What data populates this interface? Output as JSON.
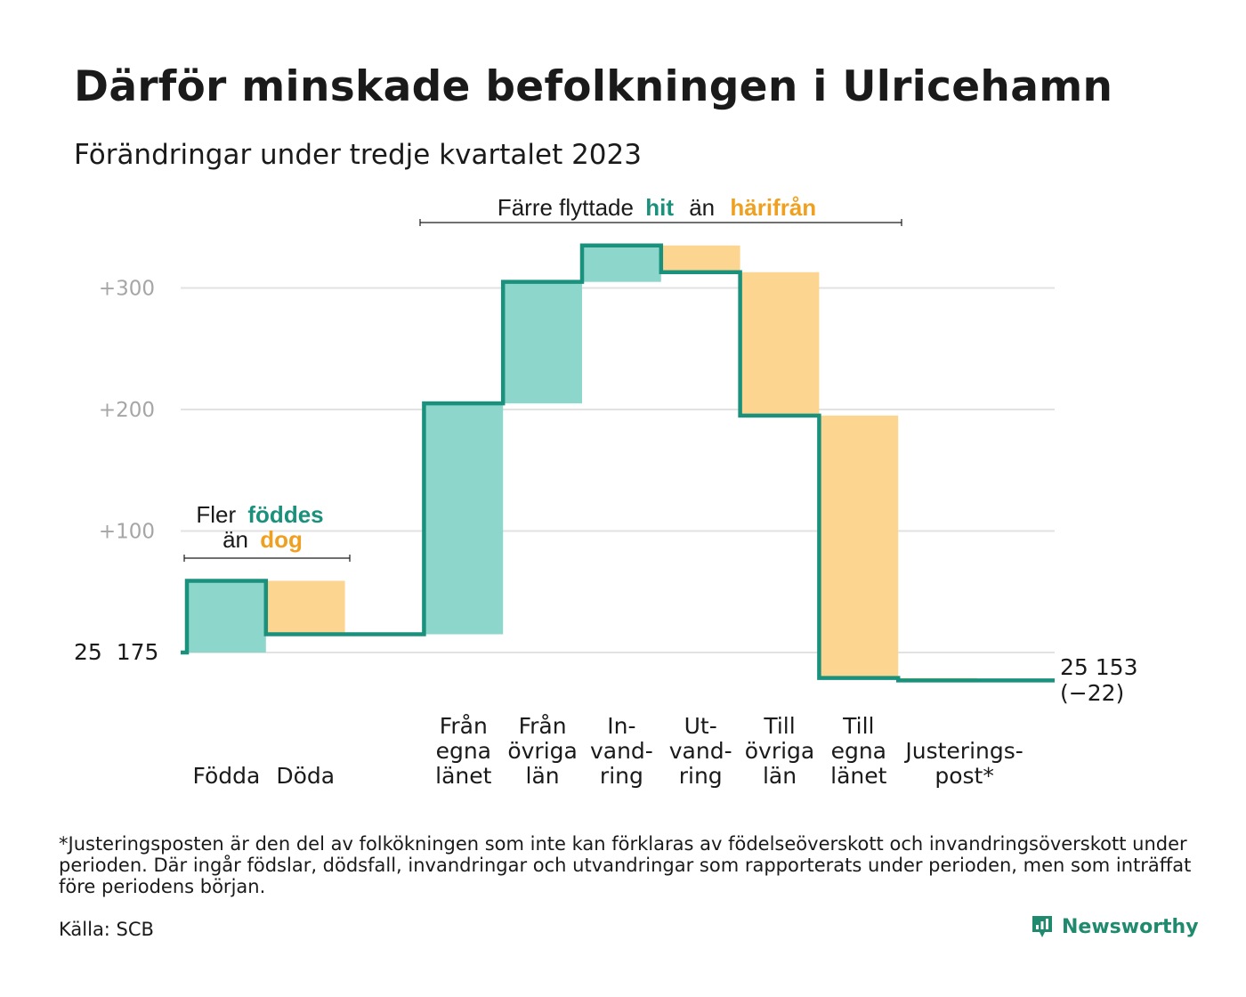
{
  "title": "Därför minskade befolkningen i Ulricehamn",
  "subtitle": "Förändringar under tredje kvartalet 2023",
  "footnote": "*Justeringsposten är den del av folkökningen som inte kan förklaras av födelseöverskott och invandringsöverskott under perioden. Där ingår födslar, dödsfall, invandringar och utvandringar som rapporterats under perioden, men som inträffat före periodens början.",
  "source": "Källa: SCB",
  "brand": "Newsworthy",
  "colors": {
    "increase": "#8dd6cc",
    "decrease": "#fcd691",
    "line": "#1a917c",
    "teal_text": "#1a917c",
    "orange_text": "#f0a020",
    "grid": "#e2e2e2",
    "tick_text": "#a6a6a6"
  },
  "annotations": {
    "birth": {
      "line1_prefix": "Fler",
      "line1_highlight": "föddes",
      "line2_prefix": "än",
      "line2_highlight": "dog"
    },
    "migration": {
      "prefix": "Färre flyttade",
      "highlight1": "hit",
      "middle": "än",
      "highlight2": "härifrån"
    }
  },
  "chart_data": {
    "type": "waterfall",
    "start_label": "25  175",
    "end_label": "25 153",
    "end_change_label": "(−22)",
    "start_value": 25175,
    "end_value": 25153,
    "yticks": [
      100,
      200,
      300
    ],
    "ytick_labels": [
      "+100",
      "+200",
      "+300"
    ],
    "ylim": [
      -40,
      340
    ],
    "grid": true,
    "steps": [
      {
        "label": "Födda",
        "change": 59,
        "direction": "increase"
      },
      {
        "label": "Döda",
        "change": -44,
        "direction": "decrease"
      },
      {
        "label": "",
        "change": 0,
        "direction": "none"
      },
      {
        "label": "Från\negna\nlänet",
        "change": 190,
        "direction": "increase"
      },
      {
        "label": "Från\növriga\nlän",
        "change": 100,
        "direction": "increase"
      },
      {
        "label": "In-\nvand-\nring",
        "change": 30,
        "direction": "increase"
      },
      {
        "label": "Ut-\nvand-\nring",
        "change": -22,
        "direction": "decrease"
      },
      {
        "label": "Till\növriga\nlän",
        "change": -118,
        "direction": "decrease"
      },
      {
        "label": "Till\negna\nlänet",
        "change": -216,
        "direction": "decrease"
      },
      {
        "label": "Justerings-\npost*",
        "change": -2,
        "direction": "decrease"
      }
    ]
  }
}
